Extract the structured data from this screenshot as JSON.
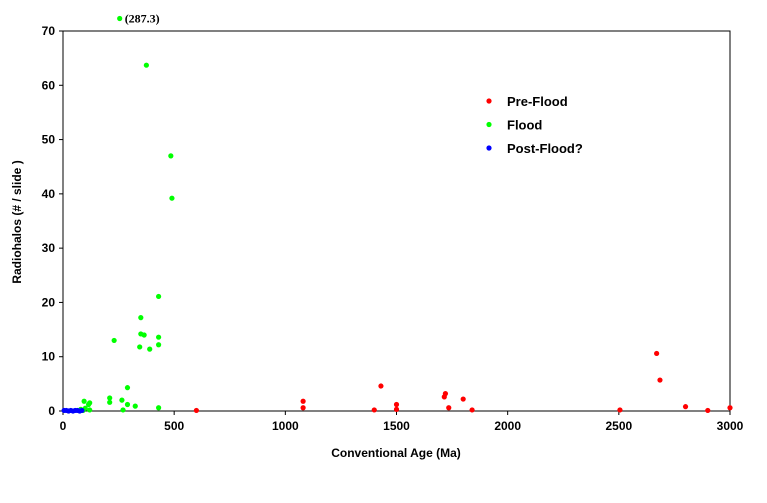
{
  "chart_data": {
    "type": "scatter",
    "title": "",
    "xlabel": "Conventional Age (Ma)",
    "ylabel": "Radiohalos (# / slide )",
    "xlim": [
      0,
      3000
    ],
    "ylim": [
      0,
      70
    ],
    "xticks": [
      0,
      500,
      1000,
      1500,
      2000,
      2500,
      3000
    ],
    "yticks": [
      0,
      10,
      20,
      30,
      40,
      50,
      60,
      70
    ],
    "grid": false,
    "legend_position": "upper-right",
    "annotation": {
      "text": "(287.3)",
      "x": 255,
      "y": 72.3
    },
    "series": [
      {
        "name": "Pre-Flood",
        "color": "#ff0000",
        "points": [
          [
            600,
            0.1
          ],
          [
            1080,
            1.8
          ],
          [
            1080,
            0.6
          ],
          [
            1400,
            0.2
          ],
          [
            1430,
            4.6
          ],
          [
            1500,
            1.2
          ],
          [
            1500,
            0.3
          ],
          [
            1715,
            2.6
          ],
          [
            1720,
            3.2
          ],
          [
            1735,
            0.6
          ],
          [
            1800,
            2.2
          ],
          [
            1840,
            0.2
          ],
          [
            2505,
            0.2
          ],
          [
            2670,
            10.6
          ],
          [
            2685,
            5.7
          ],
          [
            2800,
            0.8
          ],
          [
            2900,
            0.1
          ],
          [
            3000,
            0.6
          ]
        ]
      },
      {
        "name": "Flood",
        "color": "#00ff00",
        "points": [
          [
            255,
            72.3
          ],
          [
            375,
            63.7
          ],
          [
            485,
            47.0
          ],
          [
            490,
            39.2
          ],
          [
            430,
            21.1
          ],
          [
            350,
            17.2
          ],
          [
            350,
            14.2
          ],
          [
            365,
            14.0
          ],
          [
            430,
            13.6
          ],
          [
            230,
            13.0
          ],
          [
            430,
            12.2
          ],
          [
            345,
            11.8
          ],
          [
            390,
            11.4
          ],
          [
            290,
            4.3
          ],
          [
            210,
            2.4
          ],
          [
            265,
            2.0
          ],
          [
            95,
            1.8
          ],
          [
            120,
            1.5
          ],
          [
            115,
            1.2
          ],
          [
            210,
            1.6
          ],
          [
            290,
            1.2
          ],
          [
            325,
            0.9
          ],
          [
            430,
            0.6
          ],
          [
            100,
            0.5
          ],
          [
            80,
            0.3
          ],
          [
            270,
            0.2
          ],
          [
            120,
            0.2
          ],
          [
            90,
            0.1
          ]
        ]
      },
      {
        "name": "Post-Flood?",
        "color": "#0000ff",
        "points": [
          [
            5,
            0.1
          ],
          [
            15,
            0.1
          ],
          [
            25,
            0.0
          ],
          [
            35,
            0.1
          ],
          [
            45,
            0.0
          ],
          [
            55,
            0.1
          ],
          [
            65,
            0.1
          ],
          [
            75,
            0.0
          ],
          [
            85,
            0.1
          ]
        ]
      }
    ]
  }
}
